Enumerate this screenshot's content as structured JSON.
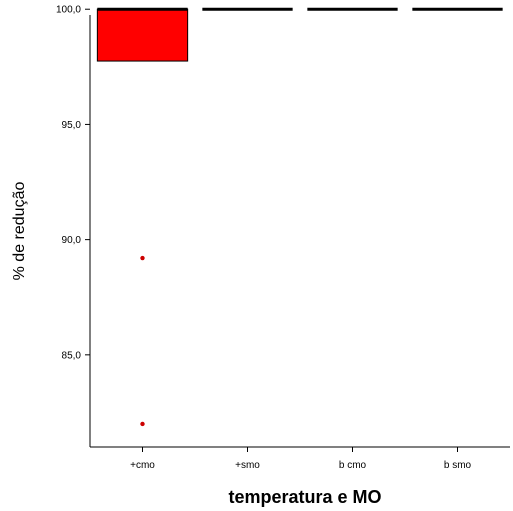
{
  "chart_data": {
    "type": "boxplot",
    "xlabel": "temperatura e MO",
    "ylabel": "% de redução",
    "ylim": [
      81.0,
      100.4
    ],
    "yticks": [
      {
        "value": 100.0,
        "label": "100,0"
      },
      {
        "value": 95.0,
        "label": "95,0"
      },
      {
        "value": 90.0,
        "label": "90,0"
      },
      {
        "value": 85.0,
        "label": "85,0"
      }
    ],
    "categories": [
      "+cmo",
      "+smo",
      "b cmo",
      "b smo"
    ],
    "groups": [
      {
        "category": "+cmo",
        "q1": 97.75,
        "median": 100.0,
        "q3": 100.0,
        "whisker_low": 97.75,
        "whisker_high": 100.0,
        "outliers": [
          89.2,
          82.0
        ],
        "box_color": "#ff0000",
        "outlier_color": "#cc0000"
      },
      {
        "category": "+smo",
        "q1": 100.0,
        "median": 100.0,
        "q3": 100.0,
        "whisker_low": 100.0,
        "whisker_high": 100.0,
        "outliers": [],
        "box_color": "#000000"
      },
      {
        "category": "b cmo",
        "q1": 100.0,
        "median": 100.0,
        "q3": 100.0,
        "whisker_low": 100.0,
        "whisker_high": 100.0,
        "outliers": [],
        "box_color": "#000000"
      },
      {
        "category": "b smo",
        "q1": 100.0,
        "median": 100.0,
        "q3": 100.0,
        "whisker_low": 100.0,
        "whisker_high": 100.0,
        "outliers": [],
        "box_color": "#000000"
      }
    ],
    "grid": false,
    "legend": "none"
  }
}
